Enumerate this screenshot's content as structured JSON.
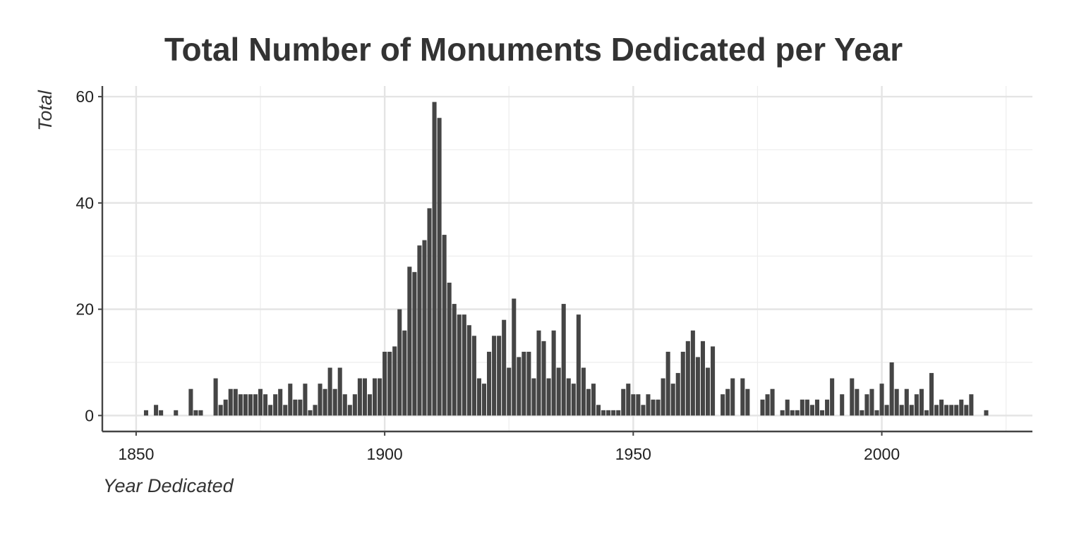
{
  "chart_data": {
    "type": "bar",
    "title": "Total Number of Monuments Dedicated per Year",
    "xlabel": "Year Dedicated",
    "ylabel": "Total",
    "xlim": [
      1843.2,
      2030.3
    ],
    "ylim": [
      -3,
      62
    ],
    "xticks": [
      1850,
      1900,
      1950,
      2000
    ],
    "yticks": [
      0,
      20,
      40,
      60
    ],
    "grid": true,
    "bar_color": "#454545",
    "x": [
      1852,
      1854,
      1855,
      1858,
      1861,
      1862,
      1863,
      1866,
      1867,
      1868,
      1869,
      1870,
      1871,
      1872,
      1873,
      1874,
      1875,
      1876,
      1877,
      1878,
      1879,
      1880,
      1881,
      1882,
      1883,
      1884,
      1885,
      1886,
      1887,
      1888,
      1889,
      1890,
      1891,
      1892,
      1893,
      1894,
      1895,
      1896,
      1897,
      1898,
      1899,
      1900,
      1901,
      1902,
      1903,
      1904,
      1905,
      1906,
      1907,
      1908,
      1909,
      1910,
      1911,
      1912,
      1913,
      1914,
      1915,
      1916,
      1917,
      1918,
      1919,
      1920,
      1921,
      1922,
      1923,
      1924,
      1925,
      1926,
      1927,
      1928,
      1929,
      1930,
      1931,
      1932,
      1933,
      1934,
      1935,
      1936,
      1937,
      1938,
      1939,
      1940,
      1941,
      1942,
      1943,
      1944,
      1945,
      1946,
      1947,
      1948,
      1949,
      1950,
      1951,
      1952,
      1953,
      1954,
      1955,
      1956,
      1957,
      1958,
      1959,
      1960,
      1961,
      1962,
      1963,
      1964,
      1965,
      1966,
      1968,
      1969,
      1970,
      1972,
      1973,
      1976,
      1977,
      1978,
      1980,
      1981,
      1982,
      1983,
      1984,
      1985,
      1986,
      1987,
      1988,
      1989,
      1990,
      1992,
      1994,
      1995,
      1996,
      1997,
      1998,
      1999,
      2000,
      2001,
      2002,
      2003,
      2004,
      2005,
      2006,
      2007,
      2008,
      2009,
      2010,
      2011,
      2012,
      2013,
      2014,
      2015,
      2016,
      2017,
      2018,
      2021
    ],
    "values": [
      1,
      2,
      1,
      1,
      5,
      1,
      1,
      7,
      2,
      3,
      5,
      5,
      4,
      4,
      4,
      4,
      5,
      4,
      2,
      4,
      5,
      2,
      6,
      3,
      3,
      6,
      1,
      2,
      6,
      5,
      9,
      5,
      9,
      4,
      2,
      4,
      7,
      7,
      4,
      7,
      7,
      12,
      12,
      13,
      20,
      16,
      28,
      27,
      32,
      33,
      39,
      59,
      56,
      34,
      25,
      21,
      19,
      19,
      17,
      15,
      7,
      6,
      12,
      15,
      15,
      18,
      9,
      22,
      11,
      12,
      12,
      7,
      16,
      14,
      7,
      16,
      9,
      21,
      7,
      6,
      19,
      9,
      5,
      6,
      2,
      1,
      1,
      1,
      1,
      5,
      6,
      4,
      4,
      2,
      4,
      3,
      3,
      7,
      12,
      6,
      8,
      12,
      14,
      16,
      11,
      14,
      9,
      13,
      4,
      5,
      7,
      7,
      5,
      3,
      4,
      5,
      1,
      3,
      1,
      1,
      3,
      3,
      2,
      3,
      1,
      3,
      7,
      4,
      7,
      5,
      1,
      4,
      5,
      1,
      6,
      2,
      10,
      5,
      2,
      5,
      2,
      4,
      5,
      1,
      8,
      2,
      3,
      2,
      2,
      2,
      3,
      2,
      4,
      1
    ]
  }
}
